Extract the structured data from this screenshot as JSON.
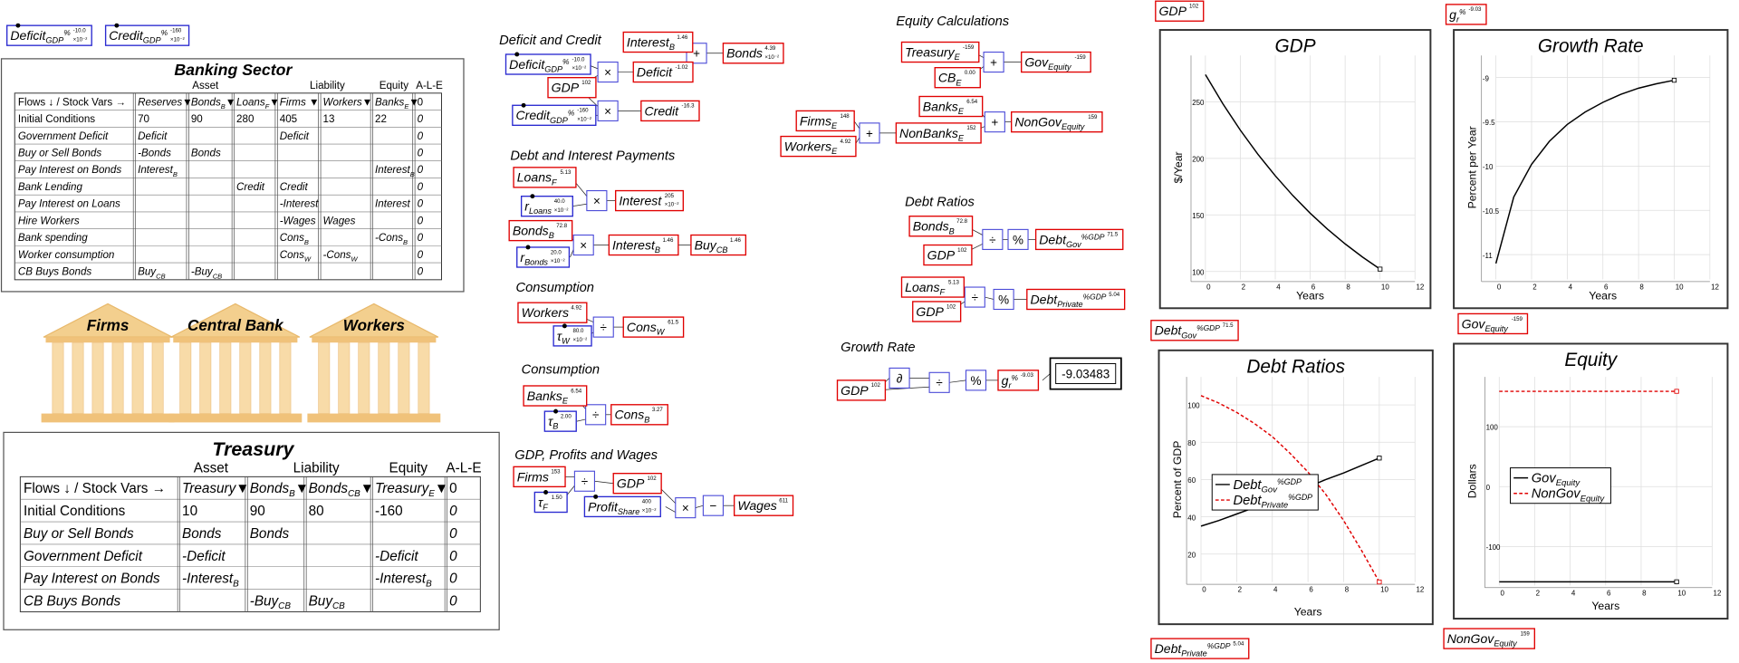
{
  "corner_nodes": [
    {
      "kind": "param",
      "t": "Deficit",
      "sub": "GDP",
      "sup": "%",
      "val": "-10.0",
      "scale": "×10⁻²"
    },
    {
      "kind": "param",
      "t": "Credit",
      "sub": "GDP",
      "sup": "%",
      "val": "-160",
      "scale": "×10⁻²"
    },
    {
      "kind": "var",
      "t": "GDP",
      "val": "102"
    },
    {
      "kind": "var",
      "t": "g",
      "sub": "r",
      "sup": "%",
      "val": "-9.03"
    },
    {
      "kind": "var",
      "t": "Debt",
      "sub": "Gov",
      "sup": "%GDP",
      "val": "71.5"
    },
    {
      "kind": "var",
      "t": "Gov",
      "sub": "Equity",
      "val": "-159"
    },
    {
      "kind": "var",
      "t": "Debt",
      "sub": "Private",
      "sup": "%GDP",
      "val": "5.04"
    },
    {
      "kind": "var",
      "t": "NonGov",
      "sub": "Equity",
      "val": "159"
    }
  ],
  "banking": {
    "title": "Banking Sector",
    "groups": [
      "Asset",
      "Liability",
      "Equity",
      "A-L-E"
    ],
    "header": [
      "Flows ↓ / Stock Vars →",
      "Reserves▼",
      {
        "t": "Bonds",
        "sub": "B",
        "end": "▼"
      },
      {
        "t": "Loans",
        "sub": "F",
        "end": "▼"
      },
      "Firms ▼",
      "Workers▼",
      {
        "t": "Banks",
        "sub": "E",
        "end": "▼"
      },
      0
    ],
    "rows": [
      [
        "Initial Conditions",
        70,
        90,
        280,
        405,
        13,
        22,
        0
      ],
      [
        "Government Deficit",
        "Deficit",
        "",
        "",
        "Deficit",
        "",
        "",
        0
      ],
      [
        "Buy or Sell Bonds",
        "-Bonds",
        "Bonds",
        "",
        "",
        "",
        "",
        0
      ],
      [
        "Pay Interest on Bonds",
        {
          "t": "Interest",
          "sub": "B"
        },
        "",
        "",
        "",
        "",
        {
          "t": "Interest",
          "sub": "B"
        },
        0
      ],
      [
        "Bank Lending",
        "",
        "",
        "Credit",
        "Credit",
        "",
        "",
        0
      ],
      [
        "Pay Interest on Loans",
        "",
        "",
        "",
        "-Interest",
        "",
        "Interest",
        0
      ],
      [
        "Hire Workers",
        "",
        "",
        "",
        "-Wages",
        "Wages",
        "",
        0
      ],
      [
        "Bank spending",
        "",
        "",
        "",
        {
          "t": "Cons",
          "sub": "B"
        },
        "",
        {
          "t": "-Cons",
          "sub": "B"
        },
        0
      ],
      [
        "Worker consumption",
        "",
        "",
        "",
        {
          "t": "Cons",
          "sub": "W"
        },
        {
          "t": "-Cons",
          "sub": "W"
        },
        "",
        0
      ],
      [
        "CB Buys Bonds",
        {
          "t": "Buy",
          "sub": "CB"
        },
        {
          "t": "-Buy",
          "sub": "CB"
        },
        "",
        "",
        "",
        "",
        0
      ]
    ]
  },
  "buildings": [
    "Firms",
    "Central Bank",
    "Workers"
  ],
  "treasury": {
    "title": "Treasury",
    "groups": [
      "Asset",
      "Liability",
      "Equity",
      "A-L-E"
    ],
    "header": [
      "Flows ↓ / Stock Vars →",
      "Treasury▼",
      {
        "t": "Bonds",
        "sub": "B",
        "end": "▼"
      },
      {
        "t": "Bonds",
        "sub": "CB",
        "end": "▼"
      },
      {
        "t": "Treasury",
        "sub": "E",
        "end": "▼"
      },
      0
    ],
    "rows": [
      [
        "Initial Conditions",
        10,
        90,
        80,
        -160,
        0
      ],
      [
        "Buy or Sell Bonds",
        "Bonds",
        "Bonds",
        "",
        "",
        0
      ],
      [
        "Government Deficit",
        "-Deficit",
        "",
        "",
        "-Deficit",
        0
      ],
      [
        "Pay Interest on Bonds",
        {
          "t": "-Interest",
          "sub": "B"
        },
        "",
        "",
        {
          "t": "-Interest",
          "sub": "B"
        },
        0
      ],
      [
        "CB Buys Bonds",
        "",
        {
          "t": "-Buy",
          "sub": "CB"
        },
        {
          "t": "Buy",
          "sub": "CB"
        },
        "",
        0
      ]
    ]
  },
  "sections": [
    {
      "heading": "Deficit and Credit",
      "ops": [
        "+",
        "×",
        "×"
      ],
      "nodes": [
        {
          "kind": "var",
          "t": "Interest",
          "sub": "B",
          "val": "1.46"
        },
        {
          "kind": "var",
          "t": "Bonds",
          "val": "4.39",
          "scale": "×10⁻²"
        },
        {
          "kind": "param",
          "t": "Deficit",
          "sub": "GDP",
          "sup": "%",
          "val": "-10.0",
          "scale": "×10⁻²"
        },
        {
          "kind": "var",
          "t": "GDP",
          "val": "102"
        },
        {
          "kind": "var",
          "t": "Deficit",
          "val": "-1.02"
        },
        {
          "kind": "param",
          "t": "Credit",
          "sub": "GDP",
          "sup": "%",
          "val": "-160",
          "scale": "×10⁻²"
        },
        {
          "kind": "var",
          "t": "Credit",
          "val": "-16.3"
        }
      ]
    },
    {
      "heading": "Debt and Interest Payments",
      "ops": [
        "×",
        "×"
      ],
      "nodes": [
        {
          "kind": "var",
          "t": "Loans",
          "sub": "F",
          "val": "5.13"
        },
        {
          "kind": "param",
          "t": "r",
          "sub": "Loans",
          "val": "40.0",
          "scale": "×10⁻²"
        },
        {
          "kind": "var",
          "t": "Interest",
          "val": "205",
          "scale": "×10⁻²"
        },
        {
          "kind": "var",
          "t": "Bonds",
          "sub": "B",
          "val": "72.8"
        },
        {
          "kind": "param",
          "t": "r",
          "sub": "Bonds",
          "val": "20.0",
          "scale": "×10⁻²"
        },
        {
          "kind": "var",
          "t": "Interest",
          "sub": "B",
          "val": "1.46"
        },
        {
          "kind": "var",
          "t": "Buy",
          "sub": "CB",
          "val": "1.46"
        }
      ]
    },
    {
      "heading": "Consumption",
      "ops": [
        "÷"
      ],
      "nodes": [
        {
          "kind": "var",
          "t": "Workers",
          "val": "4.92"
        },
        {
          "kind": "param",
          "t": "τ",
          "sub": "W",
          "val": "80.0",
          "scale": "×10⁻²"
        },
        {
          "kind": "var",
          "t": "Cons",
          "sub": "W",
          "val": "61.5"
        }
      ]
    },
    {
      "heading": "Consumption",
      "ops": [
        "÷"
      ],
      "nodes": [
        {
          "kind": "var",
          "t": "Banks",
          "sub": "E",
          "val": "6.54"
        },
        {
          "kind": "param",
          "t": "τ",
          "sub": "B",
          "val": "2.00"
        },
        {
          "kind": "var",
          "t": "Cons",
          "sub": "B",
          "val": "3.27"
        }
      ]
    },
    {
      "heading": "GDP, Profits and Wages",
      "ops": [
        "÷",
        "×",
        "−"
      ],
      "nodes": [
        {
          "kind": "var",
          "t": "Firms",
          "val": "153"
        },
        {
          "kind": "param",
          "t": "τ",
          "sub": "F",
          "val": "1.50"
        },
        {
          "kind": "var",
          "t": "GDP",
          "val": "102"
        },
        {
          "kind": "param",
          "t": "Profit",
          "sub": "Share",
          "val": "400",
          "scale": "×10⁻²"
        },
        {
          "kind": "var",
          "t": "Wages",
          "val": "611"
        }
      ]
    },
    {
      "heading": "Equity Calculations",
      "ops": [
        "+",
        "+",
        "+"
      ],
      "nodes": [
        {
          "kind": "var",
          "t": "Treasury",
          "sub": "E",
          "val": "-159"
        },
        {
          "kind": "var",
          "t": "CB",
          "sub": "E",
          "val": "0.00"
        },
        {
          "kind": "var",
          "t": "Gov",
          "sub": "Equity",
          "val": "-159"
        },
        {
          "kind": "var",
          "t": "Banks",
          "sub": "E",
          "val": "6.54"
        },
        {
          "kind": "var",
          "t": "Firms",
          "sub": "E",
          "val": "148"
        },
        {
          "kind": "var",
          "t": "Workers",
          "sub": "E",
          "val": "4.92"
        },
        {
          "kind": "var",
          "t": "NonBanks",
          "sub": "E",
          "val": "152"
        },
        {
          "kind": "var",
          "t": "NonGov",
          "sub": "Equity",
          "val": "159"
        }
      ]
    },
    {
      "heading": "Debt Ratios",
      "ops": [
        "÷",
        "%",
        "÷",
        "%"
      ],
      "nodes": [
        {
          "kind": "var",
          "t": "Bonds",
          "sub": "B",
          "val": "72.8"
        },
        {
          "kind": "var",
          "t": "GDP",
          "val": "102"
        },
        {
          "kind": "var",
          "t": "Debt",
          "sub": "Gov",
          "sup": "%GDP",
          "val": "71.5"
        },
        {
          "kind": "var",
          "t": "Loans",
          "sub": "F",
          "val": "5.13"
        },
        {
          "kind": "var",
          "t": "GDP",
          "val": "102"
        },
        {
          "kind": "var",
          "t": "Debt",
          "sub": "Private",
          "sup": "%GDP",
          "val": "5.04"
        }
      ]
    },
    {
      "heading": "Growth Rate",
      "ops": [
        "∂",
        "÷",
        "%"
      ],
      "nodes": [
        {
          "kind": "var",
          "t": "GDP",
          "val": "102"
        },
        {
          "kind": "var",
          "t": "g",
          "sub": "r",
          "sup": "%",
          "val": "-9.03"
        }
      ]
    }
  ],
  "display": "-9.03483",
  "plots": [
    {
      "title": "GDP",
      "xlabel": "Years",
      "ylabel": "$/Year",
      "xlim": [
        0,
        12
      ],
      "ylim": [
        93,
        291
      ],
      "xticks": [
        0,
        2,
        4,
        6,
        8,
        10,
        12
      ],
      "yticks": [
        100,
        150,
        200,
        250
      ],
      "x": [
        0,
        1,
        2,
        3,
        4,
        5,
        6,
        7,
        8,
        9,
        10
      ],
      "series": [
        {
          "color": "#000000",
          "values": [
            274,
            248.2,
            224.9,
            203.7,
            184.6,
            167.2,
            151.5,
            137.3,
            124.4,
            112.7,
            102.1
          ]
        }
      ]
    },
    {
      "title": "Growth Rate",
      "xlabel": "Years",
      "ylabel": "Percent per Year",
      "xlim": [
        0,
        12
      ],
      "ylim": [
        -11.28,
        -8.75
      ],
      "xticks": [
        0,
        2,
        4,
        6,
        8,
        10,
        12
      ],
      "yticks": [
        -11,
        -10.5,
        -10,
        -9.5,
        -9
      ],
      "x": [
        0,
        1,
        2,
        3,
        4,
        5,
        6,
        7,
        8,
        9,
        10
      ],
      "series": [
        {
          "color": "#000000",
          "values": [
            -11.1,
            -10.35,
            -9.98,
            -9.72,
            -9.53,
            -9.39,
            -9.28,
            -9.19,
            -9.12,
            -9.07,
            -9.03
          ]
        }
      ]
    },
    {
      "title": "Debt Ratios",
      "xlabel": "Years",
      "ylabel": "Percent of GDP",
      "xlim": [
        0,
        12
      ],
      "ylim": [
        5,
        115
      ],
      "xticks": [
        0,
        2,
        4,
        6,
        8,
        10,
        12
      ],
      "yticks": [
        20,
        40,
        60,
        80,
        100
      ],
      "x": [
        0,
        1,
        2,
        3,
        4,
        5,
        6,
        7,
        8,
        9,
        10
      ],
      "series": [
        {
          "name": {
            "t": "Debt",
            "sub": "Gov",
            "sup": "%GDP"
          },
          "color": "#000000",
          "dash": false,
          "values": [
            35,
            38,
            41.5,
            45,
            48.5,
            52,
            56,
            60,
            63.5,
            67.5,
            71.5
          ]
        },
        {
          "name": {
            "t": "Debt",
            "sub": "Private",
            "sup": "%GDP"
          },
          "color": "#e00000",
          "dash": true,
          "values": [
            105,
            101,
            96,
            90,
            83,
            74,
            64,
            52,
            38,
            22,
            5.04
          ]
        }
      ]
    },
    {
      "title": "Equity",
      "xlabel": "Years",
      "ylabel": "Dollars",
      "xlim": [
        0,
        12
      ],
      "ylim": [
        -165,
        183
      ],
      "xticks": [
        0,
        2,
        4,
        6,
        8,
        10,
        12
      ],
      "yticks": [
        -100,
        0,
        100
      ],
      "x": [
        0,
        1,
        2,
        3,
        4,
        5,
        6,
        7,
        8,
        9,
        10
      ],
      "series": [
        {
          "name": {
            "t": "Gov",
            "sub": "Equity"
          },
          "color": "#000000",
          "dash": false,
          "values": [
            -159,
            -159,
            -159,
            -159,
            -159,
            -159,
            -159,
            -159,
            -159,
            -159,
            -159
          ]
        },
        {
          "name": {
            "t": "NonGov",
            "sub": "Equity"
          },
          "color": "#e00000",
          "dash": true,
          "values": [
            159,
            159,
            159,
            159,
            159,
            159,
            159,
            159,
            159,
            159,
            159
          ]
        }
      ]
    }
  ]
}
